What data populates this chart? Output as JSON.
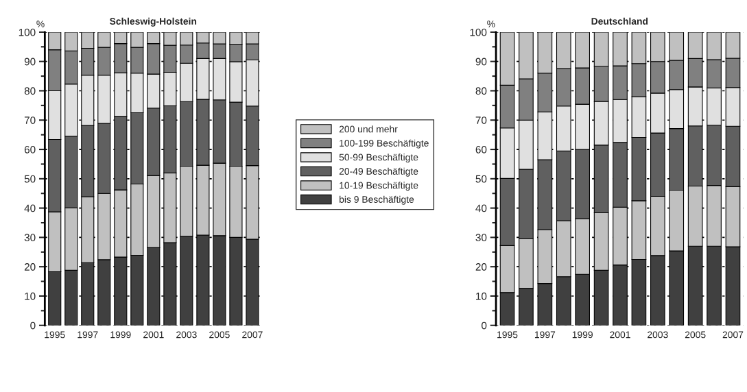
{
  "chart_data": [
    {
      "type": "bar",
      "stacked": true,
      "title": "Schleswig-Holstein",
      "ylabel": "%",
      "categories": [
        "1995",
        null,
        "1997",
        null,
        "1999",
        null,
        "2001",
        null,
        "2003",
        null,
        "2005",
        null,
        "2007"
      ],
      "ylim": [
        0,
        100
      ],
      "yticks": [
        0,
        10,
        20,
        30,
        40,
        50,
        60,
        70,
        80,
        90,
        100
      ],
      "grid": "y",
      "legend": "right",
      "series": [
        {
          "name": "bis 9 Beschäftigte",
          "color": "#404040",
          "values": [
            18.3,
            18.8,
            21.4,
            22.4,
            23.3,
            23.9,
            26.5,
            28.2,
            30.4,
            30.8,
            30.6,
            30.0,
            29.4
          ]
        },
        {
          "name": "10-19 Beschäftigte",
          "color": "#c0c0c0",
          "values": [
            20.4,
            21.3,
            22.5,
            22.6,
            22.9,
            24.3,
            24.6,
            23.8,
            23.9,
            23.8,
            24.7,
            24.3,
            25.1
          ]
        },
        {
          "name": "20-49 Beschäftigte",
          "color": "#606060",
          "values": [
            24.7,
            24.4,
            24.3,
            23.9,
            25.1,
            24.3,
            23.0,
            22.9,
            22.0,
            22.5,
            21.6,
            21.8,
            20.3
          ]
        },
        {
          "name": "50-99 Beschäftigte",
          "color": "#e0e0e0",
          "values": [
            16.6,
            17.8,
            17.1,
            16.4,
            14.8,
            13.5,
            11.6,
            11.4,
            13.1,
            13.9,
            14.1,
            13.8,
            15.7
          ]
        },
        {
          "name": "100-199 Beschäftigte",
          "color": "#808080",
          "values": [
            14.0,
            11.3,
            9.2,
            9.5,
            10.0,
            8.8,
            10.4,
            9.2,
            6.2,
            5.3,
            5.0,
            6.0,
            5.5
          ]
        },
        {
          "name": "200 und mehr",
          "color": "#c0c0c0",
          "values": [
            6.0,
            6.4,
            5.5,
            5.2,
            3.9,
            5.2,
            3.9,
            4.5,
            4.4,
            3.7,
            4.0,
            4.1,
            4.0
          ]
        }
      ]
    },
    {
      "type": "bar",
      "stacked": true,
      "title": "Deutschland",
      "ylabel": "%",
      "categories": [
        "1995",
        null,
        "1997",
        null,
        "1999",
        null,
        "2001",
        null,
        "2003",
        null,
        "2005",
        null,
        "2007"
      ],
      "ylim": [
        0,
        100
      ],
      "yticks": [
        0,
        10,
        20,
        30,
        40,
        50,
        60,
        70,
        80,
        90,
        100
      ],
      "grid": "y",
      "series": [
        {
          "color": "#404040",
          "values": [
            11.2,
            12.6,
            14.3,
            16.6,
            17.4,
            18.8,
            20.6,
            22.5,
            23.8,
            25.4,
            27.0,
            27.0,
            26.8
          ]
        },
        {
          "color": "#c0c0c0",
          "values": [
            16.0,
            16.9,
            18.3,
            19.1,
            19.0,
            19.6,
            19.7,
            20.0,
            20.2,
            20.7,
            20.5,
            20.7,
            20.5
          ]
        },
        {
          "color": "#606060",
          "values": [
            22.9,
            23.7,
            23.9,
            23.8,
            23.6,
            23.1,
            22.1,
            21.6,
            21.6,
            21.0,
            20.5,
            20.6,
            20.6
          ]
        },
        {
          "color": "#e0e0e0",
          "values": [
            17.2,
            16.8,
            16.3,
            15.3,
            15.4,
            14.9,
            14.6,
            13.9,
            13.6,
            13.3,
            13.3,
            12.7,
            13.2
          ]
        },
        {
          "color": "#808080",
          "values": [
            14.6,
            14.1,
            13.2,
            12.8,
            12.4,
            12.0,
            11.5,
            11.3,
            10.8,
            10.0,
            9.7,
            9.6,
            10.0
          ]
        },
        {
          "color": "#c0c0c0",
          "values": [
            18.1,
            15.9,
            14.0,
            12.4,
            12.2,
            11.6,
            11.5,
            10.7,
            10.0,
            9.6,
            9.0,
            9.4,
            8.9
          ]
        }
      ]
    }
  ]
}
